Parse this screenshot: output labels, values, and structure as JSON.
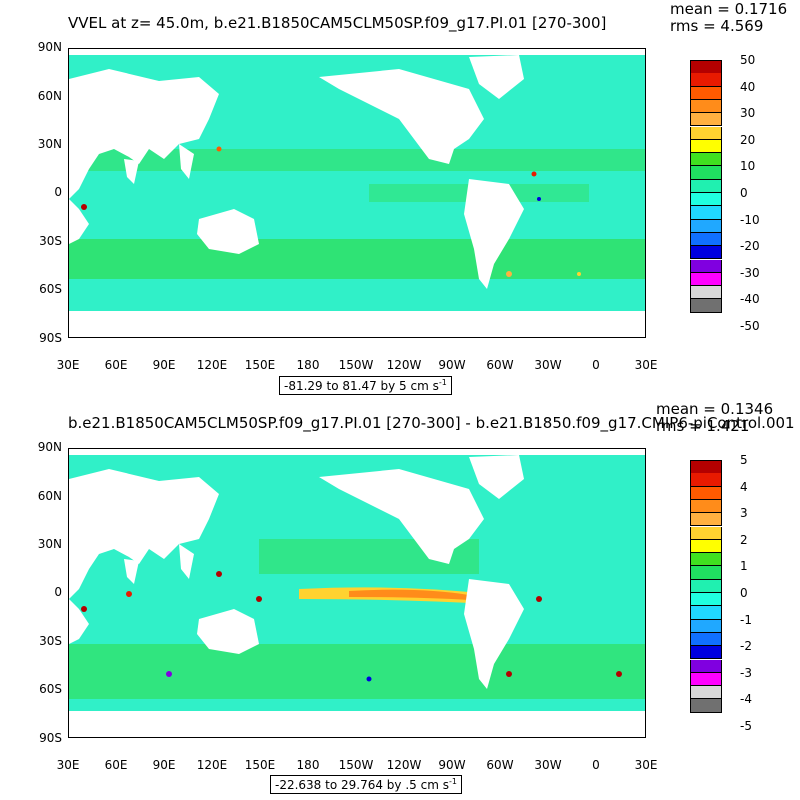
{
  "panels": [
    {
      "title": "VVEL at z=  45.0m, b.e21.B1850CAM5CLM50SP.f09_g17.PI.01 [270-300]",
      "mean_text": "mean = 0.1716",
      "rms_text": "rms = 4.569",
      "range_text": "-81.29 to 81.47 by 5 cm s",
      "range_unit_exp": "-1",
      "colorbar_labels": [
        "50",
        "40",
        "30",
        "20",
        "10",
        "0",
        "-10",
        "-20",
        "-30",
        "-40",
        "-50"
      ]
    },
    {
      "title": "b.e21.B1850CAM5CLM50SP.f09_g17.PI.01 [270-300] - b.e21.B1850.f09_g17.CMIP6-piControl.001 [197",
      "mean_text": "mean = 0.1346",
      "rms_text": "rms = 1.421",
      "range_text": "-22.638 to 29.764 by .5 cm s",
      "range_unit_exp": "-1",
      "colorbar_labels": [
        "5",
        "4",
        "3",
        "2",
        "1",
        "0",
        "-1",
        "-2",
        "-3",
        "-4",
        "-5"
      ]
    }
  ],
  "lat_labels": [
    "90N",
    "60N",
    "30N",
    "0",
    "30S",
    "60S",
    "90S"
  ],
  "lon_labels": [
    "30E",
    "60E",
    "90E",
    "120E",
    "150E",
    "180",
    "150W",
    "120W",
    "90W",
    "60W",
    "30W",
    "0",
    "30E"
  ],
  "colorbar_colors": [
    "#b40000",
    "#e81a00",
    "#ff5a00",
    "#ff8c1a",
    "#ffb040",
    "#ffd230",
    "#ffff00",
    "#40e020",
    "#20e060",
    "#20f0b0",
    "#20ffe0",
    "#20d8ff",
    "#20a8ff",
    "#1070ff",
    "#0000e0",
    "#8000e0",
    "#ff00ff",
    "#d8d8d8",
    "#707070"
  ],
  "colors": {
    "ocean_base": "#30f0c8",
    "ocean_green": "#30e060",
    "land": "#ffffff"
  }
}
